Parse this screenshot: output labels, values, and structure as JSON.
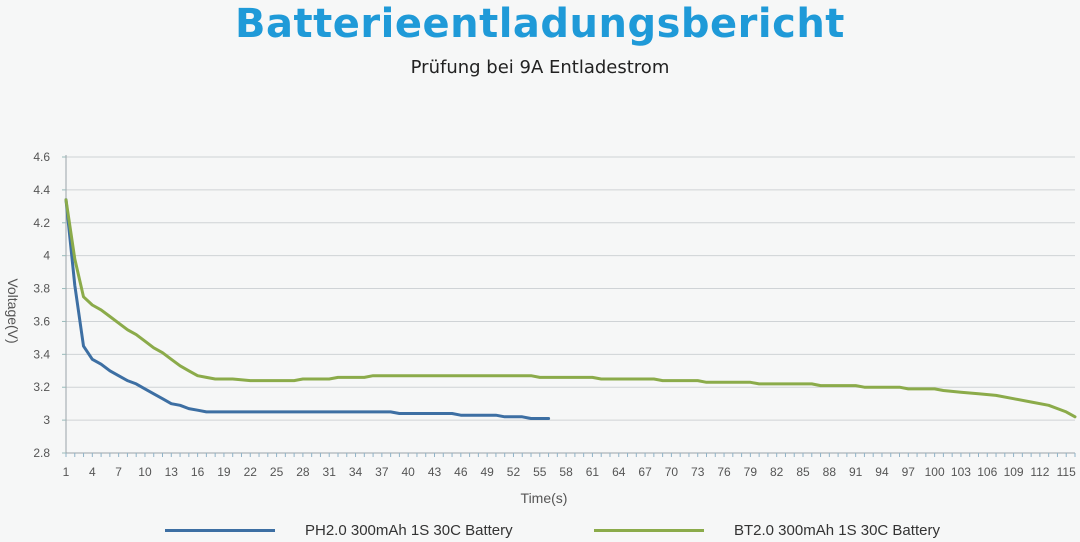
{
  "header": {
    "title": "Batterieentladungsbericht",
    "subtitle": "Prüfung bei 9A Entladestrom"
  },
  "chart_data": {
    "type": "line",
    "title": "Batterieentladungsbericht",
    "subtitle": "Prüfung bei 9A Entladestrom",
    "xlabel": "Time(s)",
    "ylabel": "Voltage(V)",
    "xlim": [
      1,
      116
    ],
    "ylim": [
      2.8,
      4.6
    ],
    "grid": true,
    "legend_position": "bottom",
    "x_tick_labels": [
      "1",
      "4",
      "7",
      "10",
      "13",
      "16",
      "19",
      "22",
      "25",
      "28",
      "31",
      "34",
      "37",
      "40",
      "43",
      "46",
      "49",
      "52",
      "55",
      "58",
      "61",
      "64",
      "67",
      "70",
      "73",
      "76",
      "79",
      "82",
      "85",
      "88",
      "91",
      "94",
      "97",
      "100",
      "103",
      "106",
      "109",
      "112",
      "115"
    ],
    "y_tick_labels": [
      "2.8",
      "3",
      "3.2",
      "3.4",
      "3.6",
      "3.8",
      "4",
      "4.2",
      "4.4",
      "4.6"
    ],
    "series": [
      {
        "name": "PH2.0 300mAh 1S 30C Battery",
        "color": "#3d6fa3",
        "points": [
          [
            1,
            4.34
          ],
          [
            2,
            3.82
          ],
          [
            3,
            3.45
          ],
          [
            4,
            3.37
          ],
          [
            5,
            3.34
          ],
          [
            6,
            3.3
          ],
          [
            7,
            3.27
          ],
          [
            8,
            3.24
          ],
          [
            9,
            3.22
          ],
          [
            10,
            3.19
          ],
          [
            11,
            3.16
          ],
          [
            12,
            3.13
          ],
          [
            13,
            3.1
          ],
          [
            14,
            3.09
          ],
          [
            15,
            3.07
          ],
          [
            16,
            3.06
          ],
          [
            17,
            3.05
          ],
          [
            20,
            3.05
          ],
          [
            25,
            3.05
          ],
          [
            30,
            3.05
          ],
          [
            35,
            3.05
          ],
          [
            38,
            3.05
          ],
          [
            39,
            3.04
          ],
          [
            45,
            3.04
          ],
          [
            46,
            3.03
          ],
          [
            50,
            3.03
          ],
          [
            51,
            3.02
          ],
          [
            53,
            3.02
          ],
          [
            54,
            3.01
          ],
          [
            56,
            3.01
          ]
        ]
      },
      {
        "name": "BT2.0 300mAh 1S 30C Battery",
        "color": "#8bab4a",
        "points": [
          [
            1,
            4.34
          ],
          [
            2,
            3.98
          ],
          [
            3,
            3.75
          ],
          [
            4,
            3.7
          ],
          [
            5,
            3.67
          ],
          [
            6,
            3.63
          ],
          [
            7,
            3.59
          ],
          [
            8,
            3.55
          ],
          [
            9,
            3.52
          ],
          [
            10,
            3.48
          ],
          [
            11,
            3.44
          ],
          [
            12,
            3.41
          ],
          [
            13,
            3.37
          ],
          [
            14,
            3.33
          ],
          [
            15,
            3.3
          ],
          [
            16,
            3.27
          ],
          [
            17,
            3.26
          ],
          [
            18,
            3.25
          ],
          [
            20,
            3.25
          ],
          [
            22,
            3.24
          ],
          [
            27,
            3.24
          ],
          [
            28,
            3.25
          ],
          [
            31,
            3.25
          ],
          [
            32,
            3.26
          ],
          [
            35,
            3.26
          ],
          [
            36,
            3.27
          ],
          [
            40,
            3.27
          ],
          [
            50,
            3.27
          ],
          [
            54,
            3.27
          ],
          [
            55,
            3.26
          ],
          [
            61,
            3.26
          ],
          [
            62,
            3.25
          ],
          [
            68,
            3.25
          ],
          [
            69,
            3.24
          ],
          [
            73,
            3.24
          ],
          [
            74,
            3.23
          ],
          [
            79,
            3.23
          ],
          [
            80,
            3.22
          ],
          [
            86,
            3.22
          ],
          [
            87,
            3.21
          ],
          [
            91,
            3.21
          ],
          [
            92,
            3.2
          ],
          [
            96,
            3.2
          ],
          [
            97,
            3.19
          ],
          [
            100,
            3.19
          ],
          [
            101,
            3.18
          ],
          [
            103,
            3.17
          ],
          [
            105,
            3.16
          ],
          [
            107,
            3.15
          ],
          [
            109,
            3.13
          ],
          [
            111,
            3.11
          ],
          [
            113,
            3.09
          ],
          [
            114,
            3.07
          ],
          [
            115,
            3.05
          ],
          [
            116,
            3.02
          ]
        ]
      }
    ]
  }
}
